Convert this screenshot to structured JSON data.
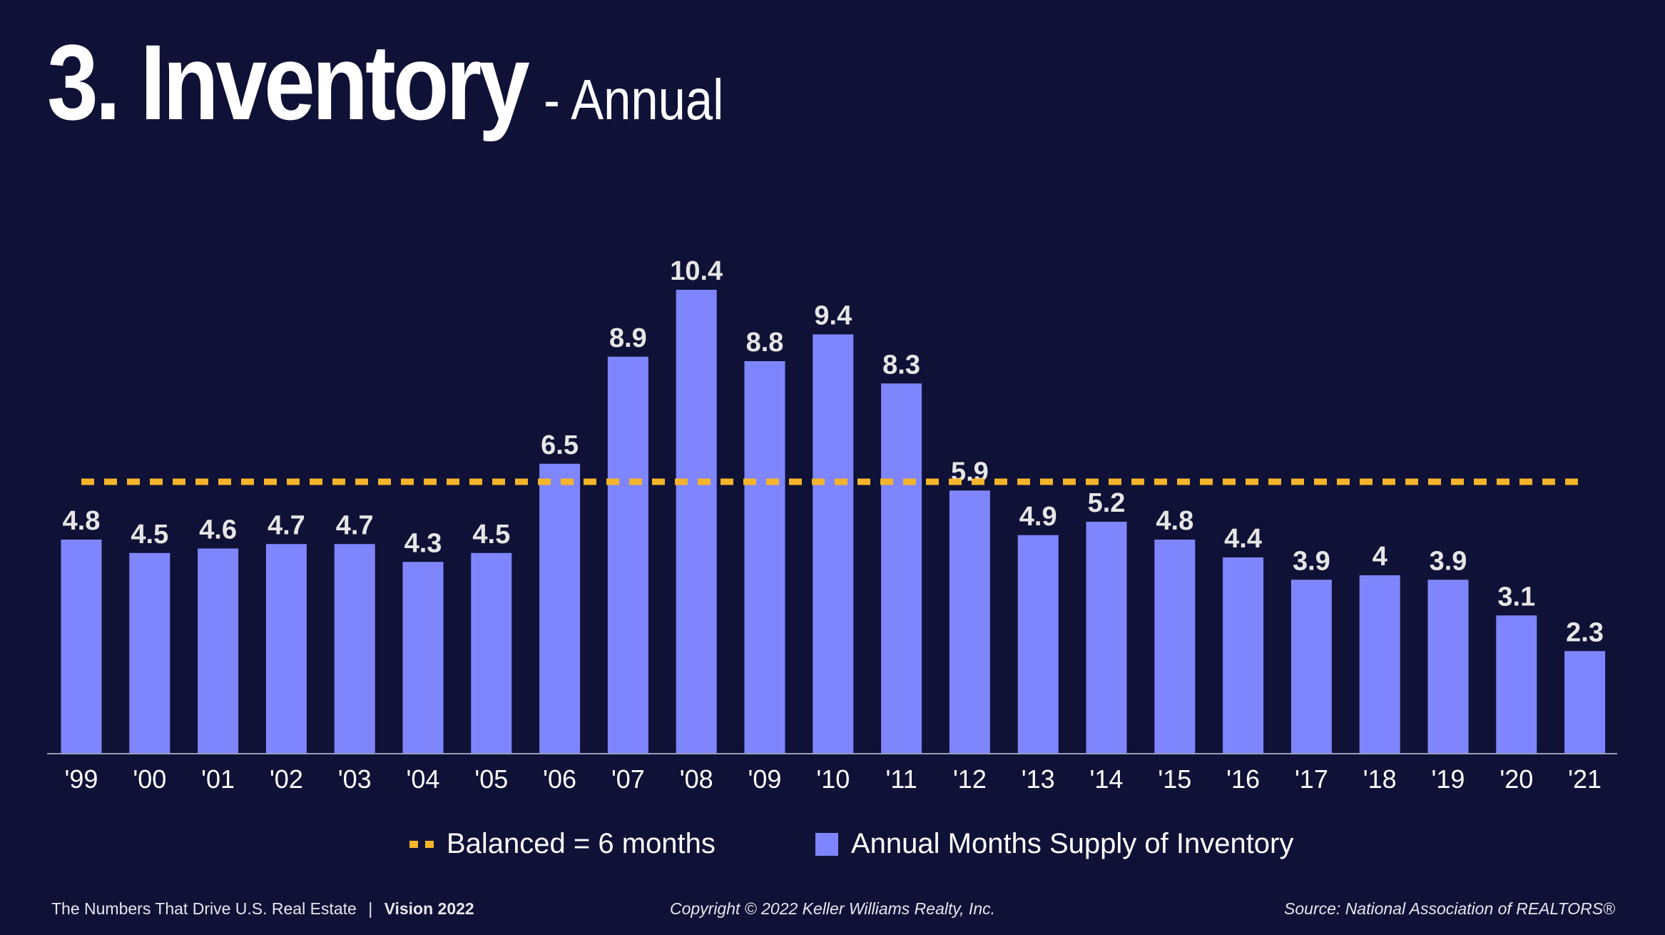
{
  "header": {
    "title": "3. Inventory",
    "subtitle": "- Annual"
  },
  "chart_data": {
    "type": "bar",
    "categories": [
      "'99",
      "'00",
      "'01",
      "'02",
      "'03",
      "'04",
      "'05",
      "'06",
      "'07",
      "'08",
      "'09",
      "'10",
      "'11",
      "'12",
      "'13",
      "'14",
      "'15",
      "'16",
      "'17",
      "'18",
      "'19",
      "'20",
      "'21"
    ],
    "series": [
      {
        "name": "Annual Months Supply of Inventory",
        "values": [
          4.8,
          4.5,
          4.6,
          4.7,
          4.7,
          4.3,
          4.5,
          6.5,
          8.9,
          10.4,
          8.8,
          9.4,
          8.3,
          5.9,
          4.9,
          5.2,
          4.8,
          4.4,
          3.9,
          4,
          3.9,
          3.1,
          2.3
        ],
        "labels": [
          "4.8",
          "4.5",
          "4.6",
          "4.7",
          "4.7",
          "4.3",
          "4.5",
          "6.5",
          "8.9",
          "10.4",
          "8.8",
          "9.4",
          "8.3",
          "5.9",
          "4.9",
          "5.2",
          "4.8",
          "4.4",
          "3.9",
          "4",
          "3.9",
          "3.1",
          "2.3"
        ],
        "color": "#7f86fd"
      }
    ],
    "reference_line": {
      "name": "Balanced = 6 months",
      "value": 6,
      "color": "#f5b42a",
      "style": "dashed"
    },
    "ylim": [
      0,
      11
    ],
    "grid": false,
    "legend_position": "bottom-center",
    "label_color": "#e6e6e6"
  },
  "legend": {
    "balanced_label": "Balanced = 6 months",
    "bars_label": "Annual Months Supply of Inventory"
  },
  "footer": {
    "left_text": "The Numbers That Drive U.S. Real Estate",
    "separator": "|",
    "left_bold": "Vision 2022",
    "center": "Copyright © 2022 Keller Williams Realty, Inc.",
    "right": "Source: National Association of REALTORS®"
  },
  "colors": {
    "background": "#0f1236",
    "bar": "#7f86fd",
    "balanced_line": "#f5b42a",
    "text": "#ffffff"
  }
}
